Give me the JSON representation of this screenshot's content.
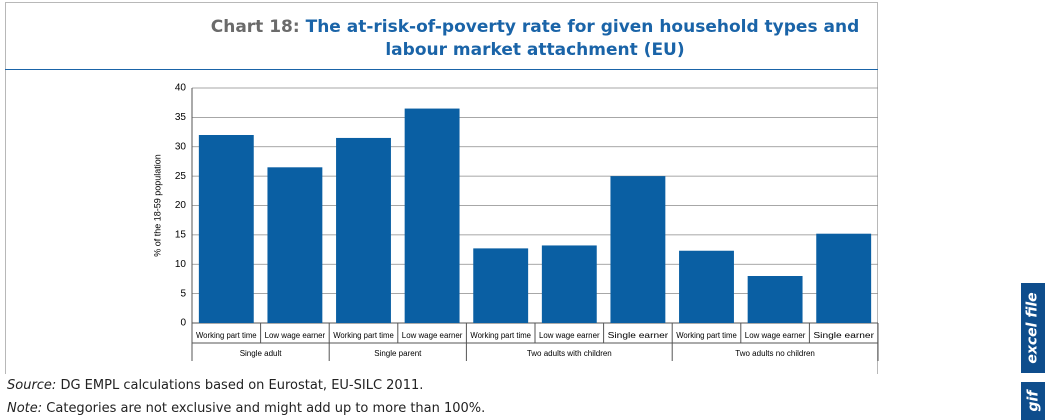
{
  "chart_data": {
    "type": "bar",
    "title_label": "Chart 18:",
    "title": "The at-risk-of-poverty rate for given household types and labour market attachment (EU)",
    "y_label": "% of the 18-59 population",
    "groups": [
      {
        "name": "Single adult",
        "categories": [
          "Working part time",
          "Low wage earner"
        ]
      },
      {
        "name": "Single parent",
        "categories": [
          "Working part time",
          "Low wage earner"
        ]
      },
      {
        "name": "Two adults with children",
        "categories": [
          "Working part time",
          "Low wage earner",
          "Single earner"
        ]
      },
      {
        "name": "Two adults no children",
        "categories": [
          "Working part time",
          "Low wage earner",
          "Single earner"
        ]
      }
    ],
    "values": [
      32,
      26.5,
      31.5,
      36.5,
      12.7,
      13.2,
      25,
      12.3,
      8,
      15.2
    ],
    "color": "#0a5fa3",
    "ylim": [
      0,
      40
    ],
    "yticks": [
      0,
      5,
      10,
      15,
      20,
      25,
      30,
      35,
      40
    ],
    "grid": true,
    "source_label": "Source:",
    "source": "DG EMPL calculations based on Eurostat, EU-SILC 2011.",
    "note_label": "Note:",
    "note": "Categories are not exclusive and might add up to more than 100%."
  },
  "side_tabs": [
    "excel file",
    "gif"
  ]
}
